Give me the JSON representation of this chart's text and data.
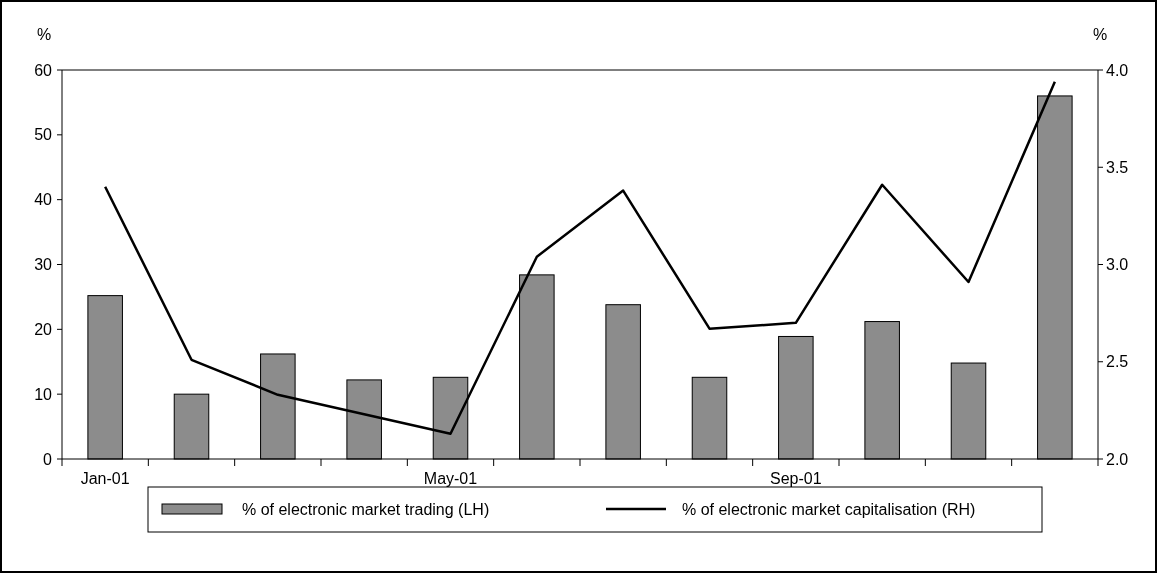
{
  "chart_data": {
    "type": "bar",
    "ylabel": "%",
    "y2label": "%",
    "categories": [
      "Jan-01",
      null,
      null,
      null,
      "May-01",
      null,
      null,
      null,
      "Sep-01",
      null,
      null,
      null
    ],
    "series": [
      {
        "name": "% of electronic market trading (LH)",
        "color": "#8c8c8c",
        "values": [
          25.2,
          10,
          16.2,
          12.2,
          12.6,
          28.4,
          23.8,
          12.6,
          18.9,
          21.2,
          14.8,
          56
        ]
      },
      {
        "name": "% of electronic market capitalisation (RH)",
        "type": "line",
        "axis": "y2",
        "color": "#000000",
        "values": [
          3.4,
          2.51,
          2.33,
          2.23,
          2.13,
          3.04,
          3.38,
          2.67,
          2.7,
          3.41,
          2.91,
          3.94
        ]
      }
    ],
    "ylim": [
      0,
      60
    ],
    "yticks": [
      0,
      10,
      20,
      30,
      40,
      50,
      60
    ],
    "y2lim": [
      2,
      4
    ],
    "y2ticks": [
      {
        "value": 2,
        "label": "2.0"
      },
      {
        "value": 2.5,
        "label": "2.5"
      },
      {
        "value": 3,
        "label": "3.0"
      },
      {
        "value": 3.5,
        "label": "3.5"
      },
      {
        "value": 4,
        "label": "4.0"
      }
    ],
    "legend": "bottom",
    "grid": false
  }
}
